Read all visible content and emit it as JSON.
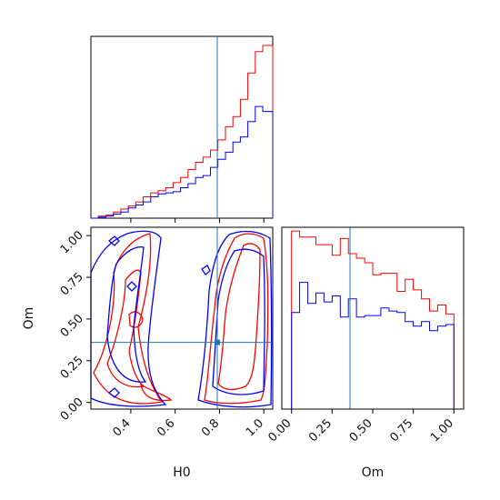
{
  "chart_data": {
    "type": "corner",
    "parameters": [
      "H0",
      "Om"
    ],
    "truth": {
      "H0": 0.79,
      "Om": 0.36
    },
    "colors": {
      "series_a": "#ff0000",
      "series_b": "#0000ff",
      "truth": "#1f77b4"
    },
    "panels": [
      {
        "id": "hist-H0",
        "type": "histogram",
        "xlim": [
          0.22,
          1.04
        ],
        "bins": [
          0.22,
          0.2537,
          0.2874,
          0.3211,
          0.3548,
          0.3885,
          0.4222,
          0.4559,
          0.4896,
          0.5233,
          0.557,
          0.5907,
          0.6244,
          0.6581,
          0.6918,
          0.7255,
          0.7592,
          0.7929,
          0.8266,
          0.8603,
          0.894,
          0.9277,
          0.9614,
          0.9951,
          1.04
        ],
        "series": [
          {
            "color_key": "series_a",
            "counts": [
              0,
              2,
              3,
              6,
              9,
              12,
              16,
              21,
              25,
              27,
              30,
              35,
              40,
              48,
              55,
              60,
              67,
              77,
              90,
              100,
              117,
              143,
              164,
              170,
              0
            ]
          },
          {
            "color_key": "series_b",
            "counts": [
              0,
              1,
              2,
              4,
              6,
              10,
              13,
              16,
              21,
              24,
              25,
              26,
              30,
              34,
              40,
              42,
              50,
              58,
              65,
              75,
              80,
              95,
              110,
              105,
              0
            ]
          }
        ],
        "xticks": [
          0.4,
          0.6,
          0.8,
          1.0
        ],
        "show_tick_labels": false
      },
      {
        "id": "contour-Om-vs-H0",
        "type": "contour",
        "xlim": [
          0.22,
          1.04
        ],
        "ylim": [
          -0.04,
          1.05
        ],
        "xticks": [
          0.4,
          0.6,
          0.8,
          1.0
        ],
        "xtick_labels": [
          "0.4",
          "0.6",
          "0.8",
          "1.0"
        ],
        "yticks": [
          0.0,
          0.25,
          0.5,
          0.75,
          1.0
        ],
        "ytick_labels": [
          "0.00",
          "0.25",
          "0.50",
          "0.75",
          "1.00"
        ],
        "xlabel": "H0",
        "ylabel": "Om"
      },
      {
        "id": "hist-Om",
        "type": "histogram",
        "xlim": [
          -0.06,
          1.06
        ],
        "bins": [
          0,
          0.05,
          0.1,
          0.15,
          0.2,
          0.25,
          0.3,
          0.35,
          0.4,
          0.45,
          0.5,
          0.55,
          0.6,
          0.65,
          0.7,
          0.75,
          0.8,
          0.85,
          0.9,
          0.95,
          1.0
        ],
        "series": [
          {
            "color_key": "series_a",
            "counts": [
              118,
              114,
              114,
              109,
              109,
              102,
              113,
              103,
              100,
              97,
              89,
              90,
              90,
              78,
              86,
              79,
              73,
              65,
              69,
              63
            ]
          },
          {
            "color_key": "series_b",
            "counts": [
              64,
              84,
              70,
              77,
              71,
              75,
              61,
              73,
              61,
              62,
              62,
              67,
              65,
              64,
              58,
              55,
              58,
              52,
              55,
              56
            ]
          }
        ],
        "xticks": [
          0.0,
          0.25,
          0.5,
          0.75,
          1.0
        ],
        "xtick_labels": [
          "0.00",
          "0.25",
          "0.50",
          "0.75",
          "1.00"
        ],
        "xlabel": "Om"
      }
    ]
  }
}
